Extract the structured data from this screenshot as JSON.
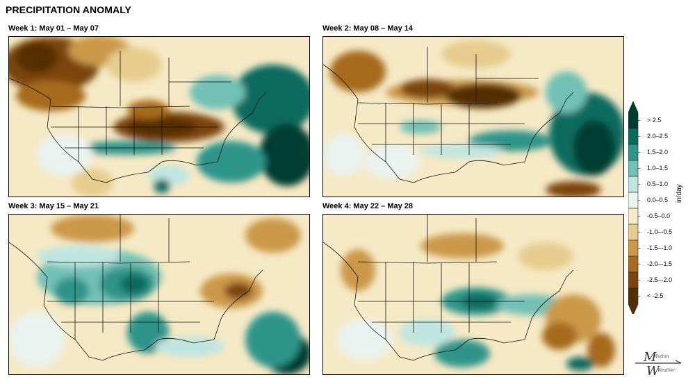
{
  "title": "PRECIPITATION ANOMALY",
  "panels": [
    {
      "label": "Week 1: May 01 – May 07"
    },
    {
      "label": "Week 2: May 08 – May 14"
    },
    {
      "label": "Week 3: May 15 – May 21"
    },
    {
      "label": "Week 4: May 22 – May 28"
    }
  ],
  "colorbar": {
    "units": "in/day",
    "bins": [
      {
        "label": "> 2.5",
        "color": "#013c30"
      },
      {
        "label": "2.0–2.5",
        "color": "#0a6a5e"
      },
      {
        "label": "1.5–2.0",
        "color": "#2f948a"
      },
      {
        "label": "1.0–1.5",
        "color": "#72c0b6"
      },
      {
        "label": "0.5–1.0",
        "color": "#c0e5e0"
      },
      {
        "label": "0.0–0.5",
        "color": "#eaf3f0"
      },
      {
        "label": "-0.5–0.0",
        "color": "#f6e9c5"
      },
      {
        "label": "-1.0–-0.5",
        "color": "#e6cc8e"
      },
      {
        "label": "-1.5–-1.0",
        "color": "#cb9849"
      },
      {
        "label": "-2.0–-1.5",
        "color": "#a66b1f"
      },
      {
        "label": "-2.5–-2.0",
        "color": "#7c4510"
      },
      {
        "label": "< -2.5",
        "color": "#542e06"
      }
    ]
  },
  "logo": {
    "line1": "Mutton",
    "line2": "Weather",
    "big1": "M",
    "big2": "W"
  }
}
